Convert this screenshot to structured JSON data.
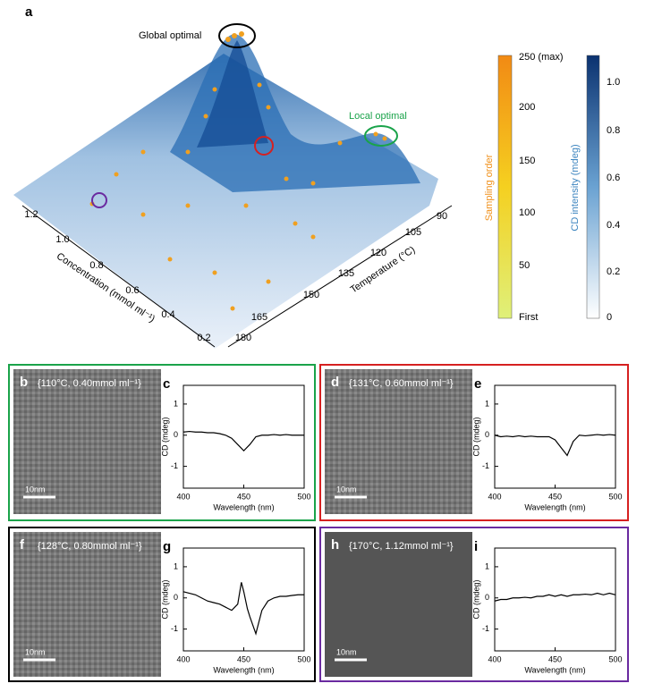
{
  "panel_a": {
    "label": "a",
    "annotations": [
      "Global optimal",
      "Local optimal"
    ],
    "concentration_axis": {
      "label": "Concentration (mmol ml⁻¹)",
      "ticks": [
        "1.2",
        "1.0",
        "0.8",
        "0.6",
        "0.4",
        "0.2"
      ]
    },
    "temperature_axis": {
      "label": "Temperature (°C)",
      "ticks": [
        "180",
        "165",
        "150",
        "135",
        "120",
        "105",
        "90"
      ]
    },
    "sampling_colorbar": {
      "label": "Sampling order",
      "ticks": [
        "250 (max)",
        "200",
        "150",
        "100",
        "50",
        "First"
      ]
    },
    "cd_colorbar": {
      "label": "CD intensity (mdeg)",
      "ticks": [
        "1.0",
        "0.8",
        "0.6",
        "0.4",
        "0.2",
        "0"
      ]
    }
  },
  "tem_panels": [
    {
      "label": "b",
      "condition": "{110°C, 0.40mmol ml⁻¹}",
      "scale": "10nm"
    },
    {
      "label": "d",
      "condition": "{131°C, 0.60mmol ml⁻¹}",
      "scale": "10nm"
    },
    {
      "label": "f",
      "condition": "{128°C, 0.80mmol ml⁻¹}",
      "scale": "10nm"
    },
    {
      "label": "h",
      "condition": "{170°C, 1.12mmol ml⁻¹}",
      "scale": "10nm"
    }
  ],
  "chart_data": [
    {
      "type": "line",
      "panel_label": "c",
      "xlabel": "Wavelength (nm)",
      "ylabel": "CD (mdeg)",
      "x": [
        400,
        405,
        410,
        415,
        420,
        425,
        430,
        435,
        440,
        445,
        450,
        455,
        460,
        465,
        470,
        475,
        480,
        485,
        490,
        495,
        500
      ],
      "values": [
        0.1,
        0.12,
        0.1,
        0.1,
        0.08,
        0.08,
        0.05,
        0.0,
        -0.1,
        -0.3,
        -0.5,
        -0.3,
        -0.05,
        0.0,
        0.0,
        0.02,
        0.0,
        0.02,
        0.0,
        0.0,
        0.0
      ],
      "xlim": [
        400,
        500
      ],
      "ylim": [
        -1.7,
        1.6
      ],
      "xticks": [
        400,
        450,
        500
      ],
      "yticks": [
        1,
        0,
        -1
      ],
      "color": "#000000"
    },
    {
      "type": "line",
      "panel_label": "e",
      "xlabel": "Wavelength (nm)",
      "ylabel": "CD (mdeg)",
      "x": [
        400,
        405,
        410,
        415,
        420,
        425,
        430,
        435,
        440,
        445,
        450,
        455,
        460,
        465,
        470,
        475,
        480,
        485,
        490,
        495,
        500
      ],
      "values": [
        0.0,
        -0.05,
        -0.03,
        -0.05,
        -0.02,
        -0.05,
        -0.03,
        -0.05,
        -0.05,
        -0.05,
        -0.15,
        -0.4,
        -0.65,
        -0.2,
        0.0,
        -0.02,
        0.0,
        0.02,
        0.0,
        0.02,
        0.0
      ],
      "xlim": [
        400,
        500
      ],
      "ylim": [
        -1.7,
        1.6
      ],
      "xticks": [
        400,
        450,
        500
      ],
      "yticks": [
        1,
        0,
        -1
      ],
      "color": "#000000"
    },
    {
      "type": "line",
      "panel_label": "g",
      "xlabel": "Wavelength (nm)",
      "ylabel": "CD (mdeg)",
      "x": [
        400,
        405,
        410,
        415,
        420,
        425,
        430,
        435,
        440,
        445,
        448,
        450,
        453,
        455,
        460,
        465,
        470,
        475,
        480,
        485,
        490,
        495,
        500
      ],
      "values": [
        0.2,
        0.15,
        0.1,
        0.0,
        -0.1,
        -0.15,
        -0.2,
        -0.3,
        -0.4,
        -0.2,
        0.5,
        0.2,
        -0.35,
        -0.6,
        -1.15,
        -0.4,
        -0.1,
        0.0,
        0.05,
        0.05,
        0.08,
        0.1,
        0.1
      ],
      "xlim": [
        400,
        500
      ],
      "ylim": [
        -1.7,
        1.6
      ],
      "xticks": [
        400,
        450,
        500
      ],
      "yticks": [
        1,
        0,
        -1
      ],
      "color": "#000000"
    },
    {
      "type": "line",
      "panel_label": "i",
      "xlabel": "Wavelength (nm)",
      "ylabel": "CD (mdeg)",
      "x": [
        400,
        405,
        410,
        415,
        420,
        425,
        430,
        435,
        440,
        445,
        450,
        455,
        460,
        465,
        470,
        475,
        480,
        485,
        490,
        495,
        500
      ],
      "values": [
        -0.1,
        -0.05,
        -0.05,
        0.0,
        0.0,
        0.02,
        0.0,
        0.05,
        0.05,
        0.1,
        0.05,
        0.1,
        0.05,
        0.1,
        0.1,
        0.12,
        0.1,
        0.15,
        0.1,
        0.15,
        0.1
      ],
      "xlim": [
        400,
        500
      ],
      "ylim": [
        -1.7,
        1.6
      ],
      "xticks": [
        400,
        450,
        500
      ],
      "yticks": [
        1,
        0,
        -1
      ],
      "color": "#000000"
    }
  ]
}
